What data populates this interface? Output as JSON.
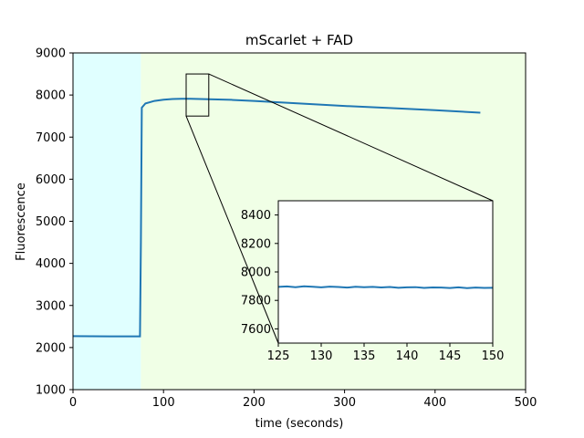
{
  "chart_data": {
    "type": "line",
    "title": "mScarlet + FAD",
    "xlabel": "time (seconds)",
    "ylabel": "Fluorescence",
    "xlim": [
      0,
      500
    ],
    "ylim": [
      1000,
      9000
    ],
    "xticks": [
      "0",
      "100",
      "200",
      "300",
      "400",
      "500"
    ],
    "yticks": [
      "1000",
      "2000",
      "3000",
      "4000",
      "5000",
      "6000",
      "7000",
      "8000",
      "9000"
    ],
    "grid": false,
    "background_regions": [
      {
        "x": [
          0,
          75
        ],
        "color": "#e0ffff"
      },
      {
        "x": [
          75,
          500
        ],
        "color": "#f0ffe6"
      }
    ],
    "series": [
      {
        "color": "#1f77b4",
        "x": [
          0,
          20,
          40,
          60,
          74,
          75,
          76,
          80,
          90,
          100,
          110,
          120,
          130,
          140,
          150,
          175,
          200,
          250,
          300,
          350,
          400,
          450
        ],
        "y": [
          2270,
          2268,
          2266,
          2265,
          2265,
          4500,
          7700,
          7800,
          7860,
          7890,
          7905,
          7910,
          7910,
          7905,
          7900,
          7885,
          7860,
          7800,
          7740,
          7690,
          7640,
          7580
        ]
      }
    ],
    "inset": {
      "xlim": [
        125,
        150
      ],
      "ylim": [
        7500,
        8500
      ],
      "xticks": [
        "125",
        "130",
        "135",
        "140",
        "145",
        "150"
      ],
      "yticks": [
        "7600",
        "7800",
        "8000",
        "8200",
        "8400"
      ],
      "series_x": [
        125,
        126,
        127,
        128,
        129,
        130,
        131,
        132,
        133,
        134,
        135,
        136,
        137,
        138,
        139,
        140,
        141,
        142,
        143,
        144,
        145,
        146,
        147,
        148,
        149,
        150
      ],
      "series_y": [
        7895,
        7898,
        7893,
        7899,
        7896,
        7892,
        7897,
        7894,
        7890,
        7896,
        7893,
        7895,
        7891,
        7894,
        7889,
        7892,
        7893,
        7888,
        7891,
        7890,
        7887,
        7892,
        7886,
        7890,
        7888,
        7889
      ],
      "zoom_box": {
        "x": [
          125,
          150
        ],
        "y": [
          7500,
          8500
        ]
      }
    }
  }
}
